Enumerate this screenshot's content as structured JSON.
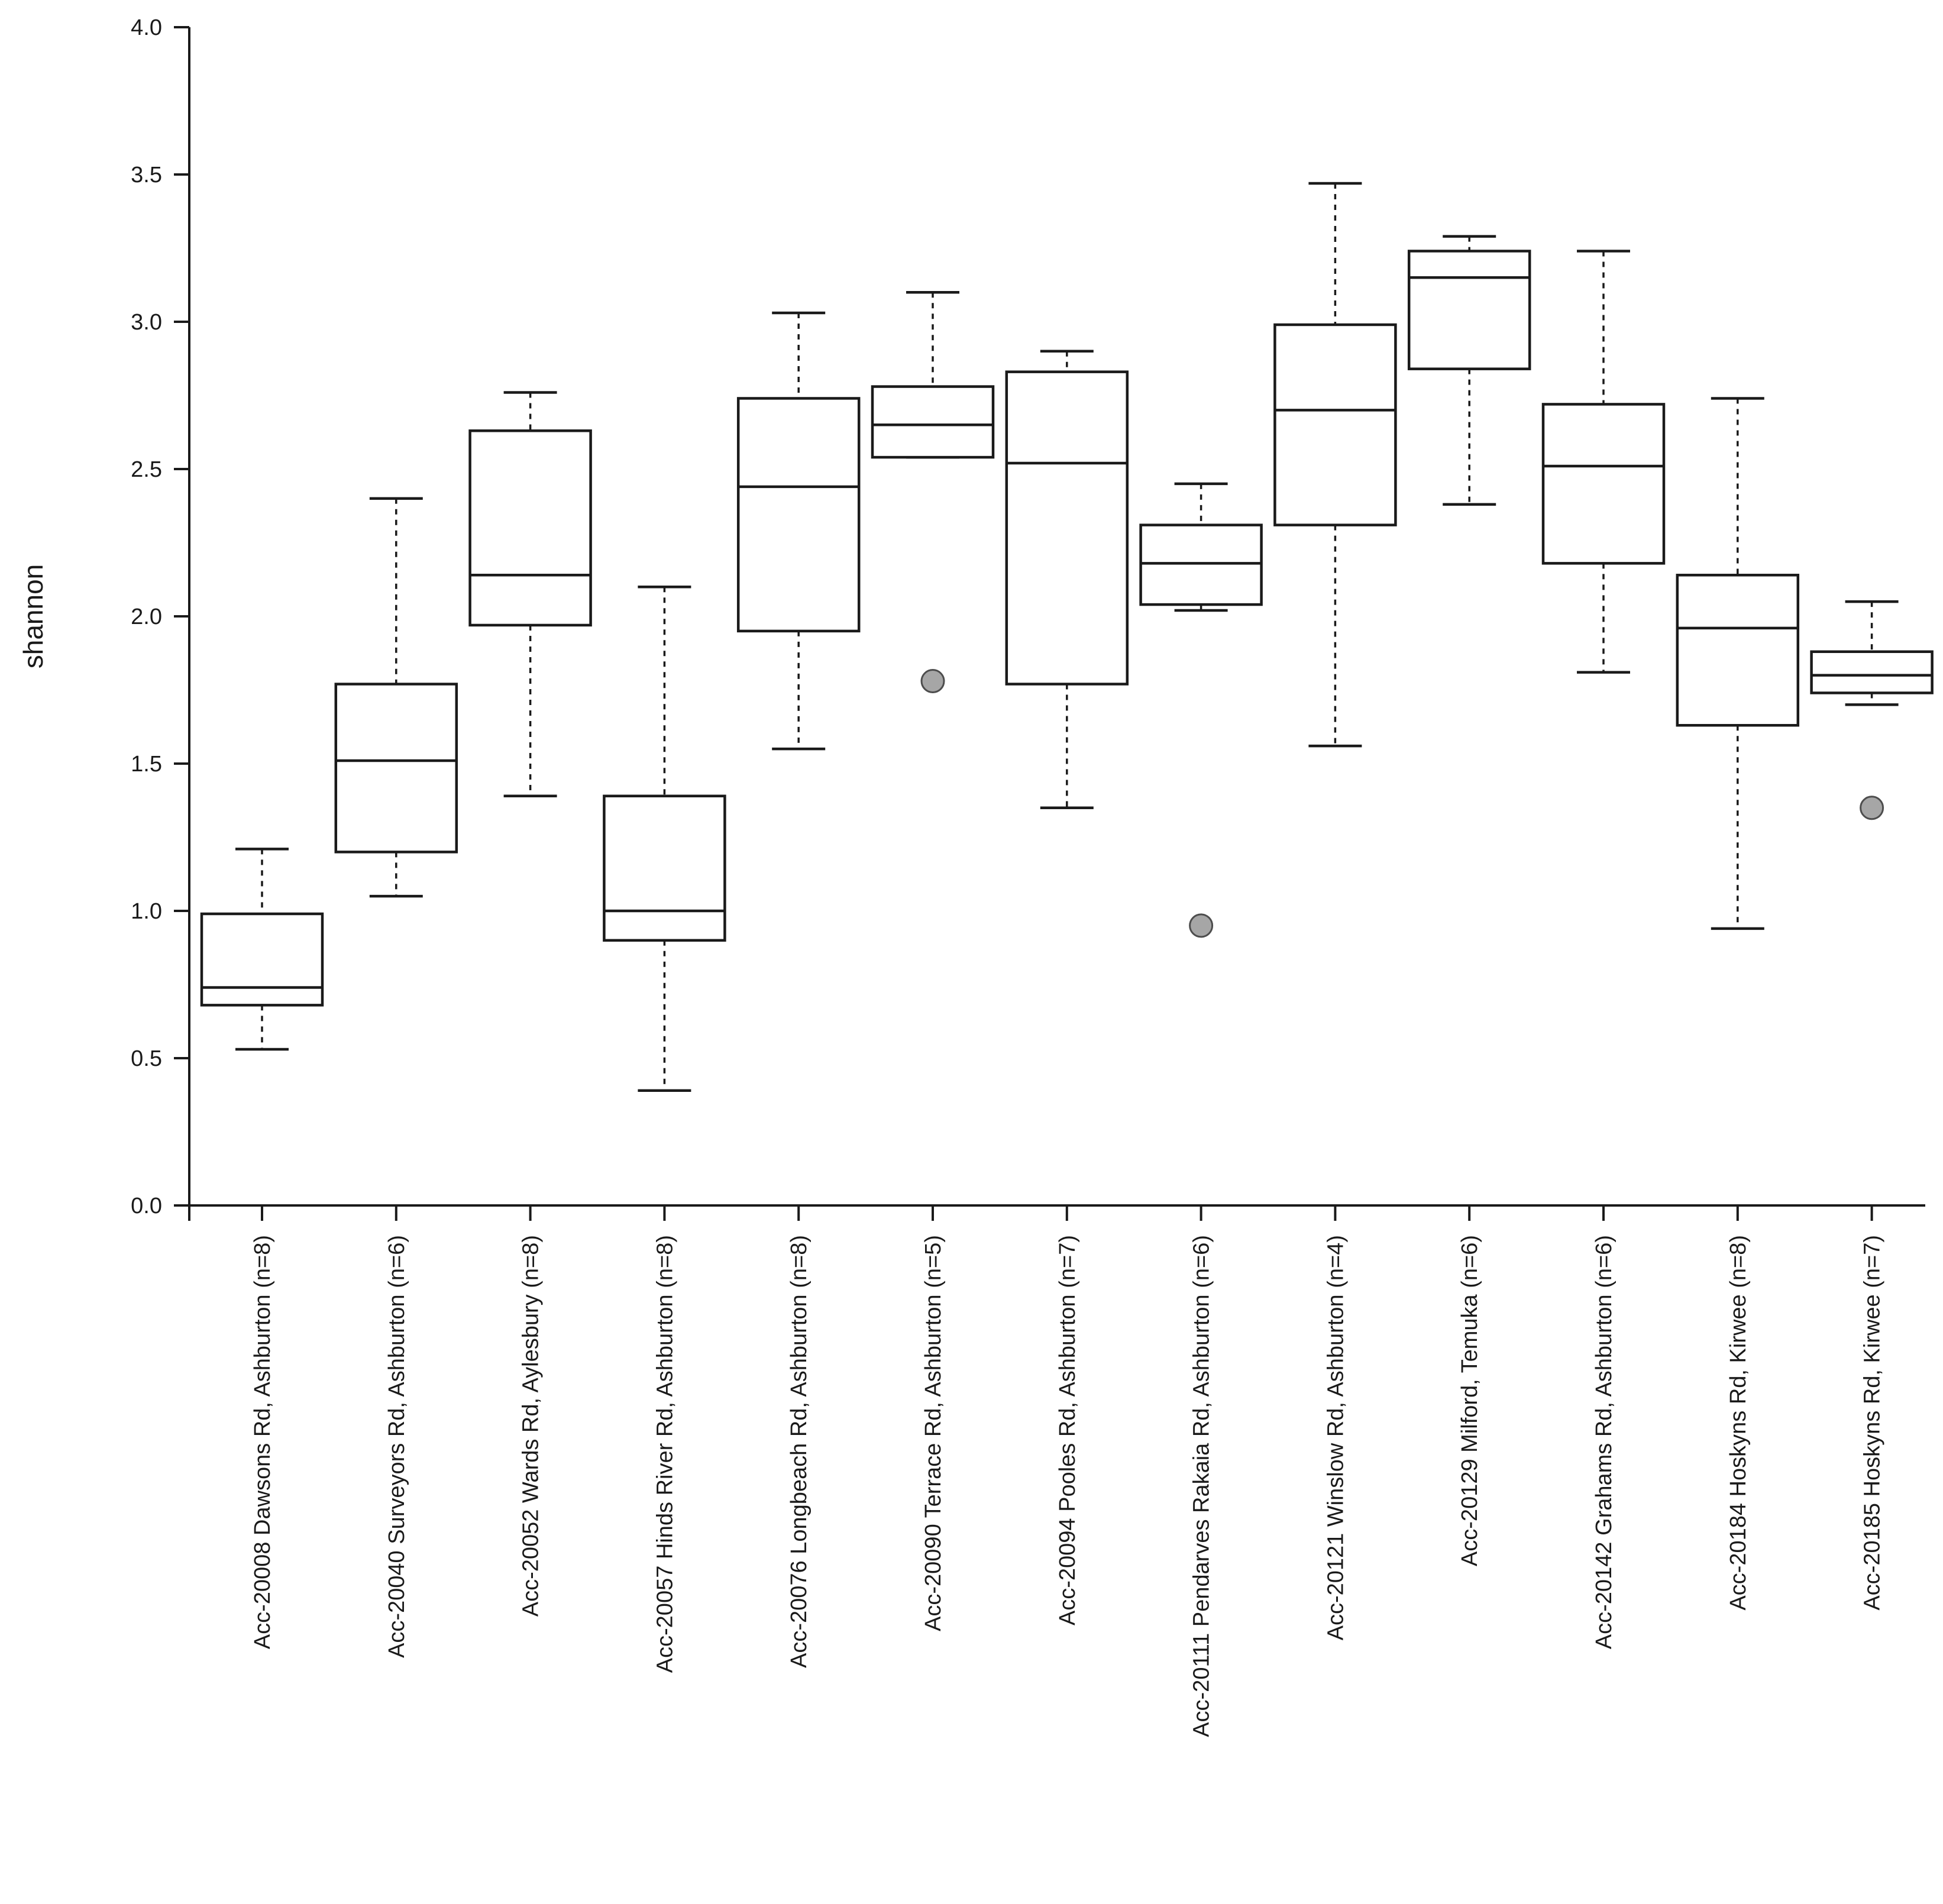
{
  "chart_data": {
    "type": "boxplot",
    "title": "",
    "xlabel": "",
    "ylabel": "shannon",
    "ylim": [
      0,
      4
    ],
    "yticks": [
      0.0,
      0.5,
      1.0,
      1.5,
      2.0,
      2.5,
      3.0,
      3.5,
      4.0
    ],
    "ytick_labels": [
      "0.0",
      "0.5",
      "1.0",
      "1.5",
      "2.0",
      "2.5",
      "3.0",
      "3.5",
      "4.0"
    ],
    "grid": false,
    "colors": {
      "box_fill": "#ffffff",
      "stroke": "#1a1a1a",
      "outlier_fill": "#a6a6a6",
      "outlier_stroke": "#4d4d4d"
    },
    "categories": [
      "Acc-20008 Dawsons Rd, Ashburton (n=8)",
      "Acc-20040 Surveyors Rd, Ashburton (n=6)",
      "Acc-20052 Wards Rd, Aylesbury (n=8)",
      "Acc-20057 Hinds River Rd, Ashburton (n=8)",
      "Acc-20076 Longbeach Rd, Ashburton (n=8)",
      "Acc-20090 Terrace Rd, Ashburton (n=5)",
      "Acc-20094 Pooles Rd, Ashburton (n=7)",
      "Acc-20111 Pendarves Rakaia Rd, Ashburton (n=6)",
      "Acc-20121 Winslow Rd, Ashburton (n=4)",
      "Acc-20129 Milford, Temuka (n=6)",
      "Acc-20142 Grahams Rd, Ashburton (n=6)",
      "Acc-20184 Hoskyns Rd, Kirwee (n=8)",
      "Acc-20185 Hoskyns Rd, Kirwee (n=7)"
    ],
    "boxes": [
      {
        "min": 0.53,
        "q1": 0.68,
        "median": 0.74,
        "q3": 0.99,
        "max": 1.21,
        "outliers": []
      },
      {
        "min": 1.05,
        "q1": 1.2,
        "median": 1.51,
        "q3": 1.77,
        "max": 2.4,
        "outliers": []
      },
      {
        "min": 1.39,
        "q1": 1.97,
        "median": 2.14,
        "q3": 2.63,
        "max": 2.76,
        "outliers": []
      },
      {
        "min": 0.39,
        "q1": 0.9,
        "median": 1.0,
        "q3": 1.39,
        "max": 2.1,
        "outliers": []
      },
      {
        "min": 1.55,
        "q1": 1.95,
        "median": 2.44,
        "q3": 2.74,
        "max": 3.03,
        "outliers": []
      },
      {
        "min": 2.54,
        "q1": 2.54,
        "median": 2.65,
        "q3": 2.78,
        "max": 3.1,
        "outliers": [
          1.78
        ]
      },
      {
        "min": 1.35,
        "q1": 1.77,
        "median": 2.52,
        "q3": 2.83,
        "max": 2.9,
        "outliers": []
      },
      {
        "min": 2.02,
        "q1": 2.04,
        "median": 2.18,
        "q3": 2.31,
        "max": 2.45,
        "outliers": [
          0.95
        ]
      },
      {
        "min": 1.56,
        "q1": 2.31,
        "median": 2.7,
        "q3": 2.99,
        "max": 3.47,
        "outliers": []
      },
      {
        "min": 2.38,
        "q1": 2.84,
        "median": 3.15,
        "q3": 3.24,
        "max": 3.29,
        "outliers": []
      },
      {
        "min": 1.81,
        "q1": 2.18,
        "median": 2.51,
        "q3": 2.72,
        "max": 3.24,
        "outliers": []
      },
      {
        "min": 0.94,
        "q1": 1.63,
        "median": 1.96,
        "q3": 2.14,
        "max": 2.74,
        "outliers": []
      },
      {
        "min": 1.7,
        "q1": 1.74,
        "median": 1.8,
        "q3": 1.88,
        "max": 2.05,
        "outliers": [
          1.35
        ]
      }
    ]
  }
}
